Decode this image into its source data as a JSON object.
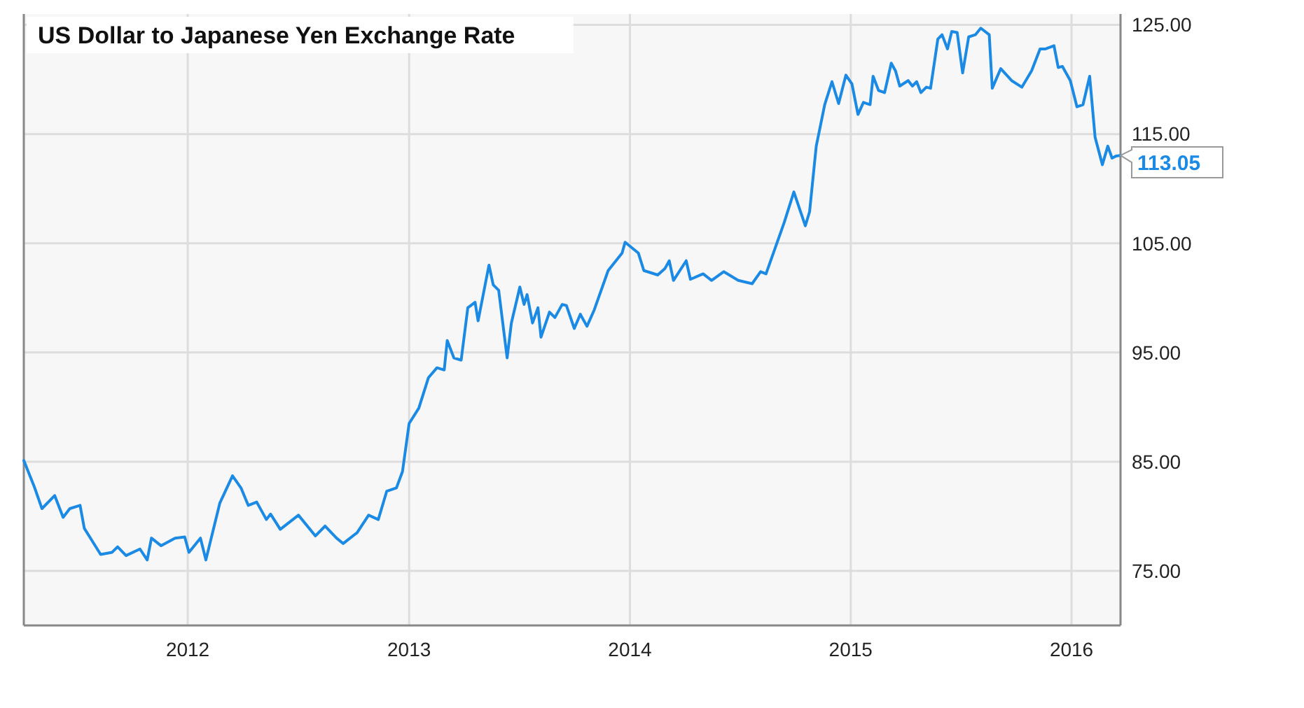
{
  "chart_data": {
    "type": "line",
    "title": "US Dollar to Japanese Yen Exchange Rate",
    "x": [
      "2011-04-05",
      "2011-04-23",
      "2011-05-05",
      "2011-05-26",
      "2011-06-09",
      "2011-06-20",
      "2011-07-07",
      "2011-07-14",
      "2011-08-10",
      "2011-08-29",
      "2011-09-07",
      "2011-09-21",
      "2011-10-14",
      "2011-10-26",
      "2011-11-02",
      "2011-11-18",
      "2011-12-11",
      "2011-12-27",
      "2012-01-03",
      "2012-01-22",
      "2012-01-31",
      "2012-02-23",
      "2012-03-15",
      "2012-03-29",
      "2012-04-10",
      "2012-04-24",
      "2012-05-10",
      "2012-05-17",
      "2012-06-02",
      "2012-07-02",
      "2012-07-30",
      "2012-08-15",
      "2012-09-03",
      "2012-09-14",
      "2012-10-07",
      "2012-10-26",
      "2012-11-11",
      "2012-11-25",
      "2012-12-11",
      "2012-12-21",
      "2013-01-01",
      "2013-01-17",
      "2013-02-02",
      "2013-02-16",
      "2013-02-28",
      "2013-03-05",
      "2013-03-16",
      "2013-03-28",
      "2013-04-08",
      "2013-04-20",
      "2013-04-25",
      "2013-05-13",
      "2013-05-20",
      "2013-05-29",
      "2013-06-12",
      "2013-06-19",
      "2013-07-03",
      "2013-07-10",
      "2013-07-15",
      "2013-07-24",
      "2013-08-02",
      "2013-08-07",
      "2013-08-21",
      "2013-08-30",
      "2013-09-11",
      "2013-09-18",
      "2013-10-01",
      "2013-10-11",
      "2013-10-22",
      "2013-11-03",
      "2013-11-26",
      "2013-12-19",
      "2013-12-24",
      "2014-01-15",
      "2014-01-24",
      "2014-02-16",
      "2014-02-28",
      "2014-03-07",
      "2014-03-14",
      "2014-04-04",
      "2014-04-11",
      "2014-05-02",
      "2014-05-16",
      "2014-06-05",
      "2014-06-29",
      "2014-07-22",
      "2014-08-05",
      "2014-08-14",
      "2014-09-13",
      "2014-09-29",
      "2014-10-18",
      "2014-10-25",
      "2014-11-05",
      "2014-11-19",
      "2014-12-01",
      "2014-12-12",
      "2014-12-24",
      "2015-01-03",
      "2015-01-13",
      "2015-01-22",
      "2015-02-02",
      "2015-02-07",
      "2015-02-16",
      "2015-02-26",
      "2015-03-09",
      "2015-03-16",
      "2015-03-23",
      "2015-04-06",
      "2015-04-13",
      "2015-04-20",
      "2015-04-27",
      "2015-05-06",
      "2015-05-13",
      "2015-05-25",
      "2015-06-01",
      "2015-06-10",
      "2015-06-17",
      "2015-06-26",
      "2015-07-05",
      "2015-07-15",
      "2015-07-26",
      "2015-08-04",
      "2015-08-18",
      "2015-08-23",
      "2015-09-06",
      "2015-09-24",
      "2015-10-11",
      "2015-10-27",
      "2015-11-10",
      "2015-11-19",
      "2015-12-03",
      "2015-12-10",
      "2015-12-17",
      "2015-12-30",
      "2016-01-10",
      "2016-01-20",
      "2016-01-31",
      "2016-02-09",
      "2016-02-21",
      "2016-03-01",
      "2016-03-08",
      "2016-03-15",
      "2016-03-22"
    ],
    "series": [
      {
        "color": "#1a8ae5",
        "values": [
          85.1,
          82.6,
          80.7,
          81.9,
          79.9,
          80.7,
          81.0,
          78.9,
          76.5,
          76.7,
          77.2,
          76.4,
          77.0,
          76.0,
          78.0,
          77.3,
          78.0,
          78.1,
          76.7,
          78.0,
          76.0,
          81.2,
          83.7,
          82.6,
          81.0,
          81.3,
          79.7,
          80.2,
          78.8,
          80.1,
          78.2,
          79.1,
          78.0,
          77.5,
          78.5,
          80.1,
          79.7,
          82.3,
          82.6,
          84.1,
          88.5,
          89.9,
          92.7,
          93.6,
          93.4,
          96.1,
          94.5,
          94.3,
          99.1,
          99.6,
          97.9,
          103.0,
          101.2,
          100.7,
          94.5,
          97.7,
          101.0,
          99.4,
          100.3,
          97.7,
          99.1,
          96.4,
          98.7,
          98.2,
          99.4,
          99.3,
          97.2,
          98.5,
          97.4,
          98.9,
          102.5,
          104.1,
          105.1,
          104.1,
          102.5,
          102.1,
          102.7,
          103.4,
          101.6,
          103.4,
          101.7,
          102.2,
          101.6,
          102.4,
          101.6,
          101.3,
          102.4,
          102.2,
          106.9,
          109.7,
          106.6,
          107.9,
          113.9,
          117.7,
          119.8,
          117.8,
          120.4,
          119.6,
          116.8,
          117.9,
          117.7,
          120.3,
          119.0,
          118.8,
          121.5,
          120.8,
          119.4,
          119.9,
          119.4,
          119.8,
          118.8,
          119.3,
          119.2,
          123.7,
          124.1,
          122.8,
          124.4,
          124.3,
          120.6,
          123.9,
          124.1,
          124.7,
          124.1,
          119.2,
          121.0,
          119.9,
          119.3,
          120.8,
          122.8,
          122.8,
          123.1,
          121.1,
          121.2,
          119.9,
          117.5,
          117.7,
          120.3,
          114.7,
          112.2,
          113.9,
          112.8,
          113.0,
          113.05
        ]
      }
    ],
    "xlim": [
      "2011-04-05",
      "2016-03-22"
    ],
    "xticks": [
      {
        "value": "2012-01-01",
        "label": "2012"
      },
      {
        "value": "2013-01-01",
        "label": "2013"
      },
      {
        "value": "2014-01-01",
        "label": "2014"
      },
      {
        "value": "2015-01-01",
        "label": "2015"
      },
      {
        "value": "2016-01-01",
        "label": "2016"
      }
    ],
    "ylim": [
      70,
      126
    ],
    "yticks": [
      {
        "value": 75,
        "label": "75.00"
      },
      {
        "value": 85,
        "label": "85.00"
      },
      {
        "value": 95,
        "label": "95.00"
      },
      {
        "value": 105,
        "label": "105.00"
      },
      {
        "value": 115,
        "label": "115.00"
      },
      {
        "value": 125,
        "label": "125.00"
      }
    ],
    "annotations": [
      {
        "text": "113.05",
        "x": "2016-03-22",
        "y": 113.05
      }
    ],
    "grid": true,
    "marker": "none",
    "line_style": "solid"
  }
}
